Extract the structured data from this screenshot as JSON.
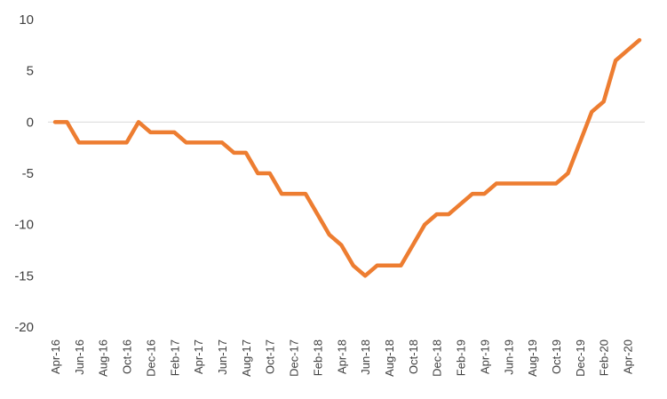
{
  "chart_data": {
    "type": "line",
    "title": "",
    "xlabel": "",
    "ylabel": "",
    "ylim": [
      -20,
      10
    ],
    "yticks": [
      10,
      5,
      0,
      -5,
      -10,
      -15,
      -20
    ],
    "grid": false,
    "legend": "none",
    "zero_line": true,
    "colors": {
      "line": "#ED7D31",
      "zero_line": "#D9D9D9",
      "text": "#404040"
    },
    "x": [
      "Apr-16",
      "May-16",
      "Jun-16",
      "Jul-16",
      "Aug-16",
      "Sep-16",
      "Oct-16",
      "Nov-16",
      "Dec-16",
      "Jan-17",
      "Feb-17",
      "Mar-17",
      "Apr-17",
      "May-17",
      "Jun-17",
      "Jul-17",
      "Aug-17",
      "Sep-17",
      "Oct-17",
      "Nov-17",
      "Dec-17",
      "Jan-18",
      "Feb-18",
      "Mar-18",
      "Apr-18",
      "May-18",
      "Jun-18",
      "Jul-18",
      "Aug-18",
      "Sep-18",
      "Oct-18",
      "Nov-18",
      "Dec-18",
      "Jan-19",
      "Feb-19",
      "Mar-19",
      "Apr-19",
      "May-19",
      "Jun-19",
      "Jul-19",
      "Aug-19",
      "Sep-19",
      "Oct-19",
      "Nov-19",
      "Dec-19",
      "Jan-20",
      "Feb-20",
      "Mar-20",
      "Apr-20",
      "May-20"
    ],
    "xtick_labels": [
      "Apr-16",
      "Jun-16",
      "Aug-16",
      "Oct-16",
      "Dec-16",
      "Feb-17",
      "Apr-17",
      "Jun-17",
      "Aug-17",
      "Oct-17",
      "Dec-17",
      "Feb-18",
      "Apr-18",
      "Jun-18",
      "Aug-18",
      "Oct-18",
      "Dec-18",
      "Feb-19",
      "Apr-19",
      "Jun-19",
      "Aug-19",
      "Oct-19",
      "Dec-19",
      "Feb-20",
      "Apr-20"
    ],
    "series": [
      {
        "values": [
          0,
          0,
          -2,
          -2,
          -2,
          -2,
          -2,
          0,
          -1,
          -1,
          -1,
          -2,
          -2,
          -2,
          -2,
          -3,
          -3,
          -5,
          -5,
          -7,
          -7,
          -7,
          -9,
          -11,
          -12,
          -14,
          -15,
          -14,
          -14,
          -14,
          -12,
          -10,
          -9,
          -9,
          -8,
          -7,
          -7,
          -6,
          -6,
          -6,
          -6,
          -6,
          -6,
          -5,
          -2,
          1,
          2,
          6,
          7,
          8
        ]
      }
    ]
  }
}
